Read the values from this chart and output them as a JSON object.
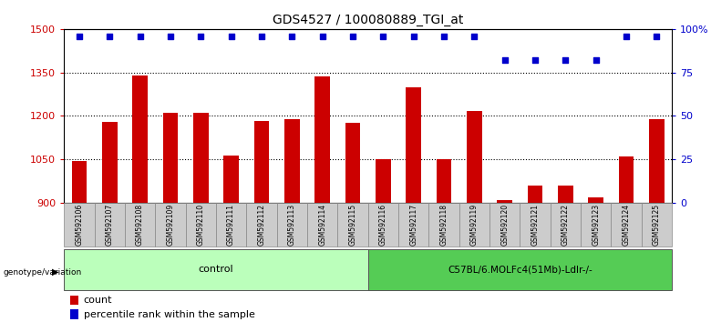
{
  "title": "GDS4527 / 100080889_TGI_at",
  "samples": [
    "GSM592106",
    "GSM592107",
    "GSM592108",
    "GSM592109",
    "GSM592110",
    "GSM592111",
    "GSM592112",
    "GSM592113",
    "GSM592114",
    "GSM592115",
    "GSM592116",
    "GSM592117",
    "GSM592118",
    "GSM592119",
    "GSM592120",
    "GSM592121",
    "GSM592122",
    "GSM592123",
    "GSM592124",
    "GSM592125"
  ],
  "counts": [
    1043,
    1180,
    1340,
    1210,
    1210,
    1063,
    1183,
    1190,
    1335,
    1175,
    1050,
    1300,
    1052,
    1218,
    910,
    960,
    960,
    920,
    1060,
    1190
  ],
  "percentiles": [
    96,
    96,
    96,
    96,
    96,
    96,
    96,
    96,
    96,
    96,
    96,
    96,
    96,
    96,
    82,
    82,
    82,
    82,
    96,
    96
  ],
  "control_count": 10,
  "bar_color": "#cc0000",
  "dot_color": "#0000cc",
  "ylim_left": [
    900,
    1500
  ],
  "ylim_right": [
    0,
    100
  ],
  "yticks_left": [
    900,
    1050,
    1200,
    1350,
    1500
  ],
  "yticks_right": [
    0,
    25,
    50,
    75,
    100
  ],
  "ytick_labels_right": [
    "0",
    "25",
    "50",
    "75",
    "100%"
  ],
  "grid_vals": [
    1050,
    1200,
    1350
  ],
  "control_label": "control",
  "treatment_label": "C57BL/6.MOLFc4(51Mb)-Ldlr-/-",
  "genotype_label": "genotype/variation",
  "legend_count_label": "count",
  "legend_pct_label": "percentile rank within the sample",
  "control_color": "#bbffbb",
  "treatment_color": "#55cc55",
  "sample_bg_color": "#cccccc",
  "title_fontsize": 10,
  "tick_fontsize": 8
}
